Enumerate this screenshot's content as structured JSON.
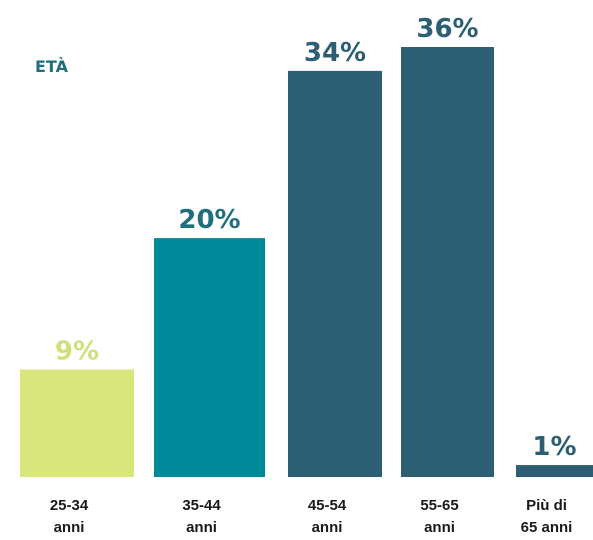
{
  "chart_data": {
    "type": "bar",
    "title": "ETÀ",
    "categories": [
      [
        "25-34",
        "anni"
      ],
      [
        "35-44",
        "anni"
      ],
      [
        "45-54",
        "anni"
      ],
      [
        "55-65",
        "anni"
      ],
      [
        "Più di",
        "65 anni"
      ]
    ],
    "values": [
      9,
      20,
      34,
      36,
      1
    ],
    "value_labels": [
      "9%",
      "20%",
      "34%",
      "36%",
      "1%"
    ],
    "colors": [
      "#d9e67c",
      "#008a99",
      "#2c5f74",
      "#2c5f74",
      "#2c5f74"
    ],
    "label_colors": [
      "#cfe07a",
      "#1f6f7f",
      "#2c5f74",
      "#2c5f74",
      "#2c5f74"
    ]
  }
}
